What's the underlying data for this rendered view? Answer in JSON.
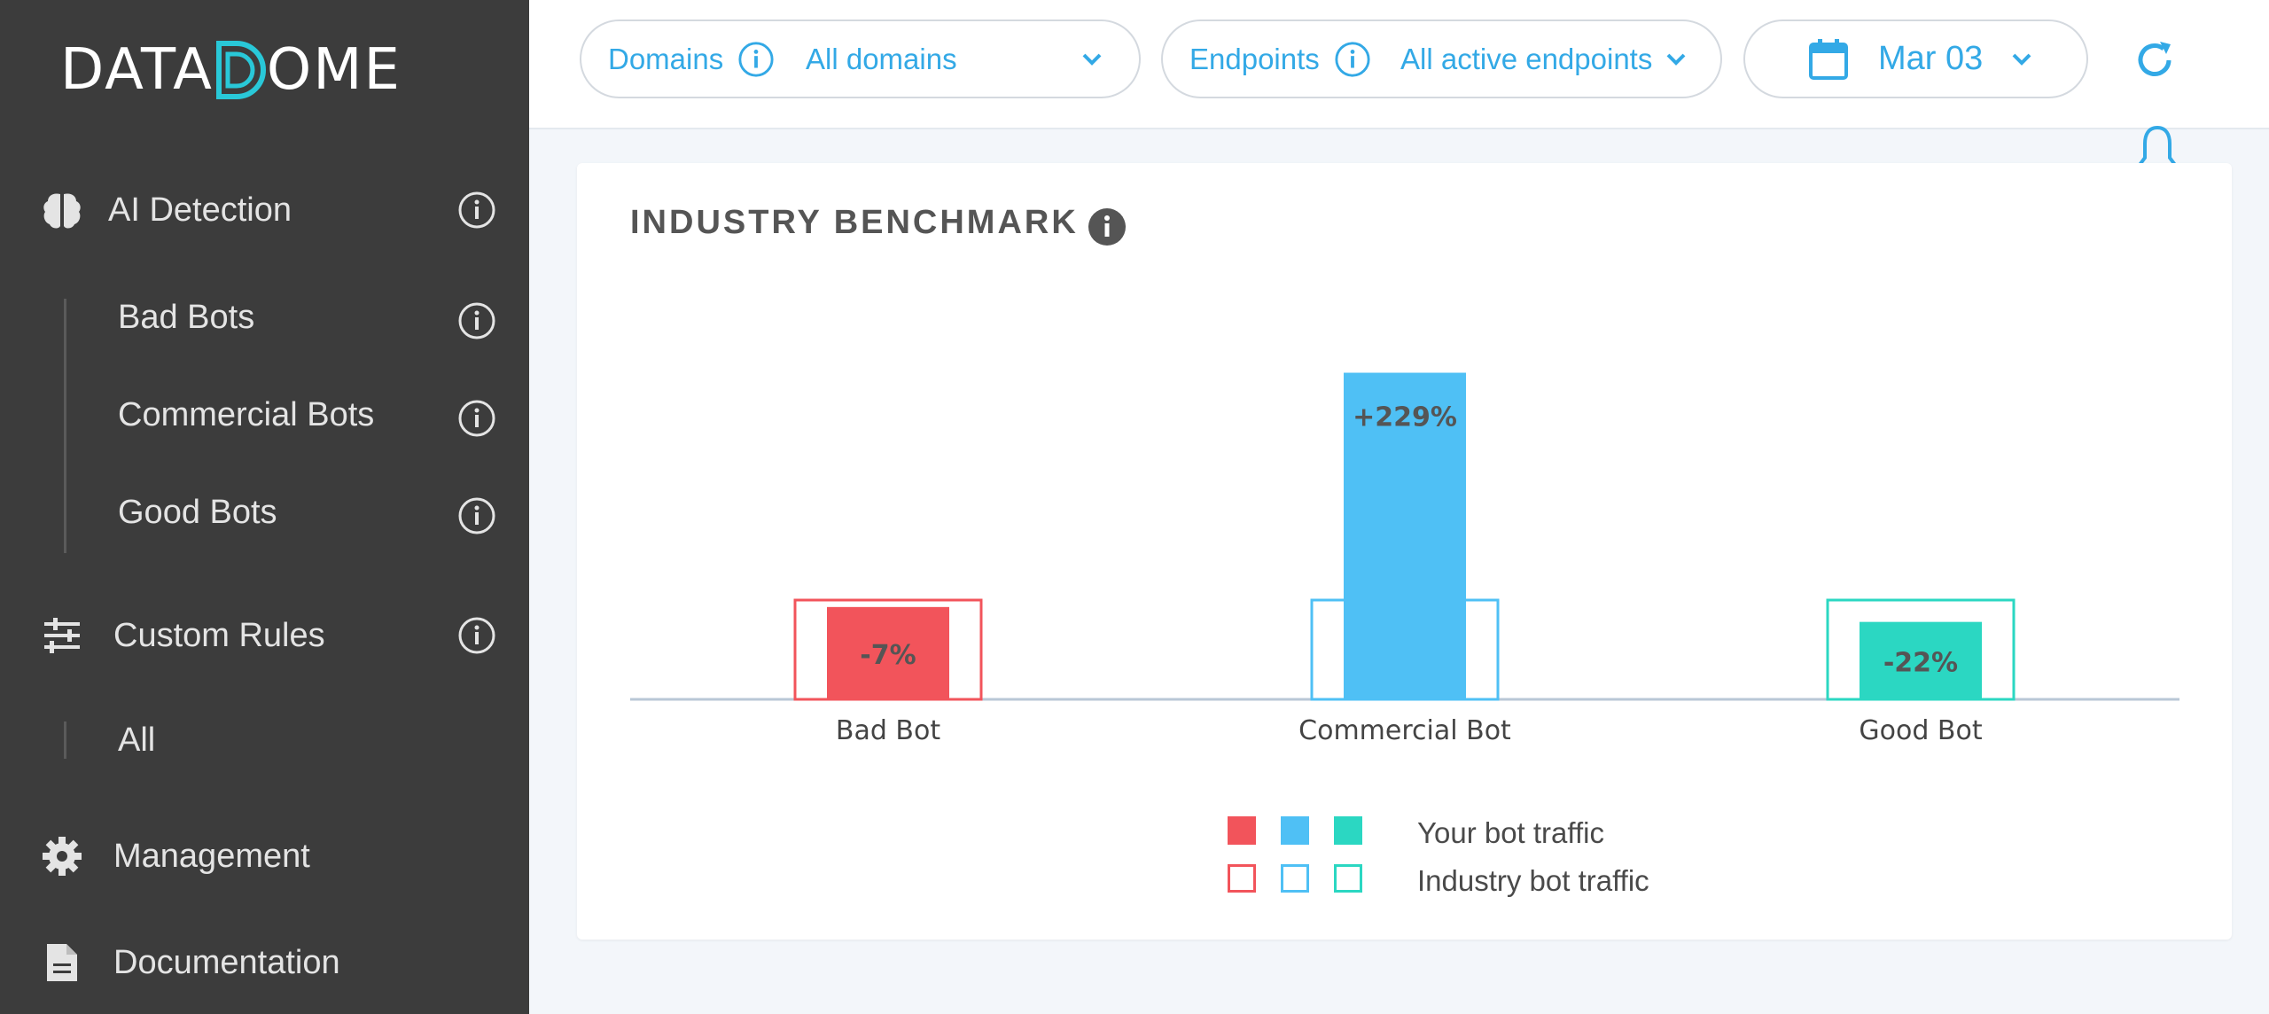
{
  "brand": {
    "left": "DATA",
    "right": "OME"
  },
  "sidebar": {
    "ai_detection": "AI Detection",
    "bad_bots": "Bad Bots",
    "commercial_bots": "Commercial Bots",
    "good_bots": "Good Bots",
    "custom_rules": "Custom Rules",
    "all": "All",
    "management": "Management",
    "documentation": "Documentation"
  },
  "header": {
    "domains_label": "Domains",
    "domains_value": "All domains",
    "endpoints_label": "Endpoints",
    "endpoints_value": "All active endpoints",
    "date_value": "Mar 03"
  },
  "card": {
    "title": "INDUSTRY BENCHMARK"
  },
  "chart_data": {
    "type": "bar",
    "title": "INDUSTRY BENCHMARK",
    "categories": [
      "Bad Bot",
      "Commercial Bot",
      "Good Bot"
    ],
    "series": [
      {
        "name": "Your bot traffic",
        "values": [
          0.93,
          3.29,
          0.78
        ],
        "labels": [
          "-7%",
          "+229%",
          "-22%"
        ]
      },
      {
        "name": "Industry bot traffic",
        "values": [
          1,
          1,
          1
        ]
      }
    ],
    "colors": [
      "#f2545b",
      "#4fc0f5",
      "#2bd7c2"
    ],
    "legend": [
      "Your bot traffic",
      "Industry bot traffic"
    ],
    "legend_position": "bottom",
    "grid": false
  },
  "colors": {
    "sidebar_bg": "#3c3c3c",
    "accent": "#33a9e6",
    "teal": "#29c8d8"
  }
}
